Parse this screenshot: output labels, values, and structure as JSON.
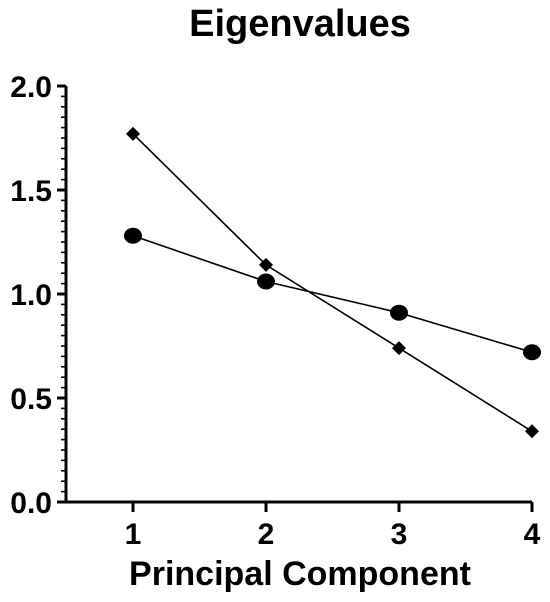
{
  "chart_data": {
    "type": "line",
    "title": "Eigenvalues",
    "xlabel": "Principal Component",
    "ylabel": "",
    "x": [
      1,
      2,
      3,
      4
    ],
    "xlim": [
      0.5,
      4
    ],
    "ylim": [
      0,
      2.0
    ],
    "x_ticks": [
      "1",
      "2",
      "3",
      "4"
    ],
    "y_ticks": [
      "0.0",
      "0.5",
      "1.0",
      "1.5",
      "2.0"
    ],
    "grid": false,
    "legend": "none",
    "series": [
      {
        "marker": "circle",
        "color": "#000000",
        "values": [
          1.28,
          1.06,
          0.91,
          0.72
        ]
      },
      {
        "marker": "diamond",
        "color": "#000000",
        "values": [
          1.77,
          1.14,
          0.74,
          0.34
        ]
      }
    ]
  }
}
